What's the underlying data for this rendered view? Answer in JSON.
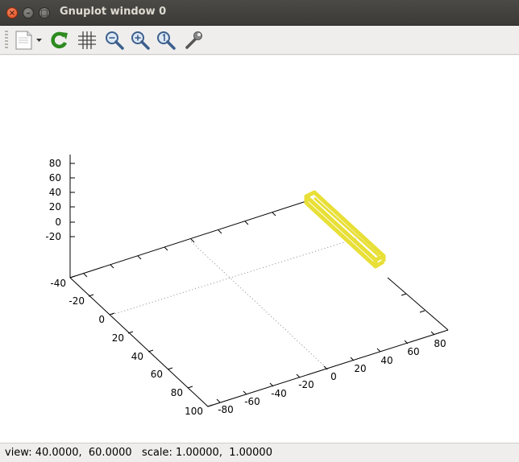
{
  "window": {
    "title": "Gnuplot window 0"
  },
  "toolbar": {
    "buttons": [
      {
        "name": "copy-menu",
        "icon": "clipboard-icon"
      },
      {
        "name": "replot",
        "icon": "refresh-icon"
      },
      {
        "name": "grid",
        "icon": "grid-icon"
      },
      {
        "name": "zoom-out",
        "icon": "zoom-out-icon"
      },
      {
        "name": "zoom-in",
        "icon": "zoom-in-icon"
      },
      {
        "name": "zoom-reset",
        "icon": "zoom-reset-icon"
      },
      {
        "name": "settings",
        "icon": "wrench-icon"
      }
    ]
  },
  "status": {
    "text": "view: 40.0000,  60.0000   scale: 1.00000,  1.00000"
  },
  "chart_data": {
    "type": "scatter",
    "dimensions": 3,
    "view": {
      "rot_x": 40,
      "rot_z": 60,
      "scale": 1.0,
      "scale_z": 1.0
    },
    "x_ticks": [
      "-80",
      "-60",
      "-40",
      "-20",
      "0",
      "20",
      "40",
      "60",
      "80"
    ],
    "y_ticks": [
      "-40",
      "-20",
      "0",
      "20",
      "40",
      "60",
      "80",
      "100"
    ],
    "z_ticks": [
      "-20",
      "0",
      "20",
      "40",
      "60",
      "80"
    ],
    "xrange": [
      -90,
      90
    ],
    "yrange": [
      -40,
      100
    ],
    "zrange": [
      -40,
      90
    ],
    "grid": "base-plane dotted at x=0 and y=0",
    "objects": [
      {
        "shape": "box",
        "color": "#e8df37",
        "x": [
          70,
          85
        ],
        "y": [
          -40,
          0
        ],
        "z": [
          0,
          5
        ]
      }
    ]
  }
}
